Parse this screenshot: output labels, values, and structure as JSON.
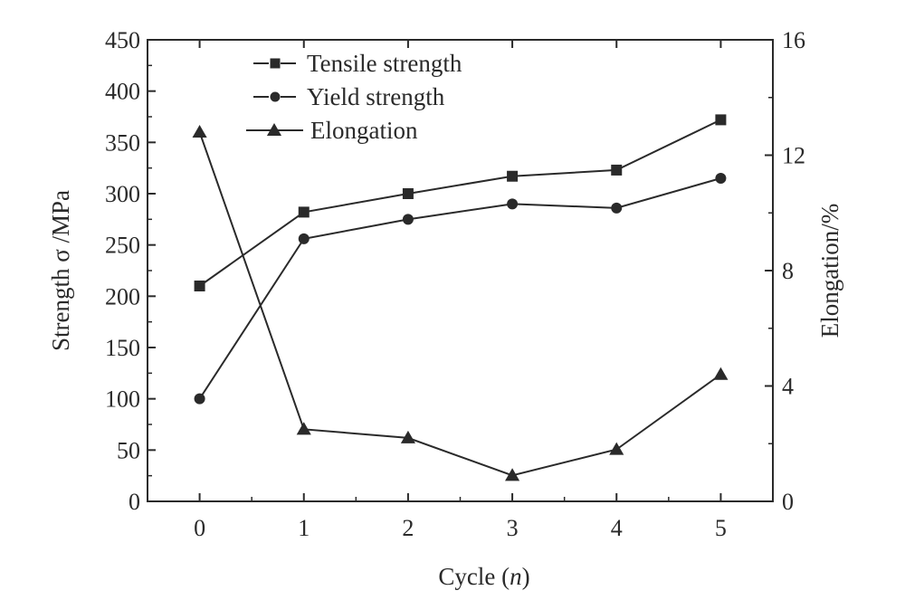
{
  "chart_data": {
    "type": "line",
    "x": [
      0,
      1,
      2,
      3,
      4,
      5
    ],
    "xlabel": "Cycle (",
    "xlabel_var": "n",
    "xlabel_close": ")",
    "ylabel": "Strength  σ /MPa",
    "y2label": "Elongation/%",
    "xlim": [
      -0.5,
      5.5
    ],
    "ylim": [
      0,
      450
    ],
    "y2lim": [
      0,
      16
    ],
    "xticks": [
      "0",
      "1",
      "2",
      "3",
      "4",
      "5"
    ],
    "yticks": [
      "0",
      "50",
      "100",
      "150",
      "200",
      "250",
      "300",
      "350",
      "400",
      "450"
    ],
    "y2ticks": [
      "0",
      "4",
      "8",
      "12",
      "16"
    ],
    "grid": false,
    "legend_position": "top-left",
    "series": [
      {
        "name": "Tensile strength",
        "axis": "left",
        "marker": "square",
        "values": [
          210,
          282,
          300,
          317,
          323,
          372
        ]
      },
      {
        "name": "Yield strength",
        "axis": "left",
        "marker": "circle",
        "values": [
          100,
          256,
          275,
          290,
          286,
          315
        ]
      },
      {
        "name": "Elongation",
        "axis": "right",
        "marker": "triangle",
        "values": [
          12.8,
          2.5,
          2.2,
          0.9,
          1.8,
          4.4
        ]
      }
    ],
    "colors": {
      "axis": "#2a2a2a",
      "series": "#2a2a2a"
    }
  }
}
